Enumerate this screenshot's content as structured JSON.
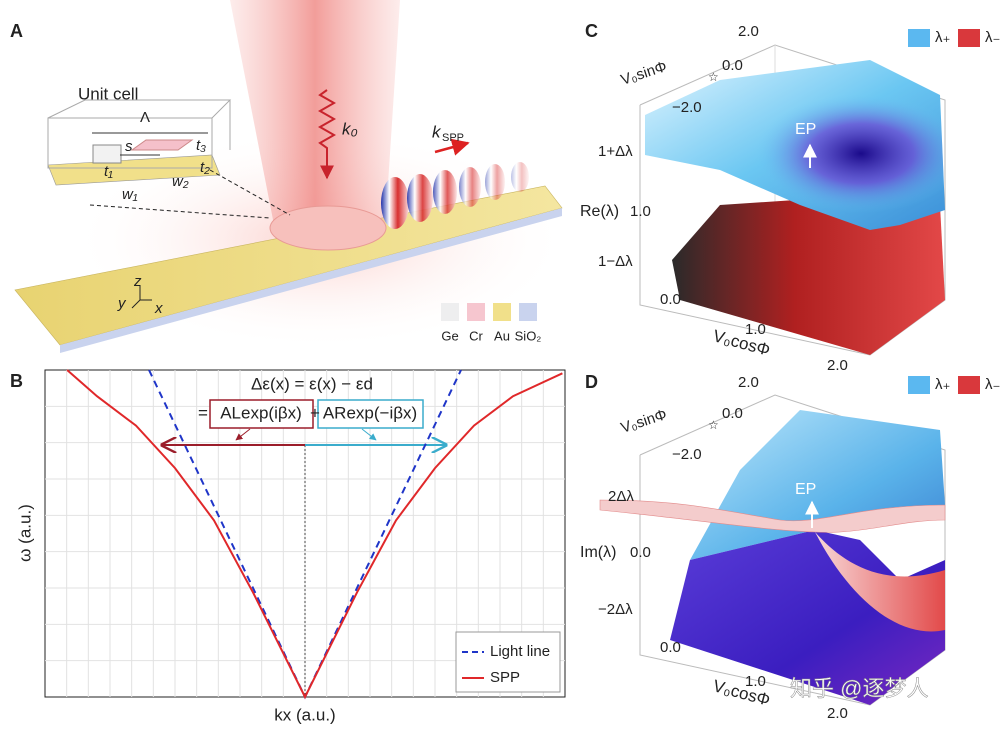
{
  "chart_data": {
    "type": "line",
    "label": "B",
    "formula_top": "Δε(x) = ε(x) − εd",
    "formula_eq": "=",
    "formula_left": "ALexp(iβx)",
    "formula_plus": "+",
    "formula_right": "ARexp(−iβx)",
    "xlabel": "kx (a.u.)",
    "ylabel": "ω (a.u.)",
    "xlim": [
      -1,
      1
    ],
    "ylim": [
      0,
      1
    ],
    "grid": true,
    "legend": "lower right",
    "series": [
      {
        "name": "Light line",
        "color": "#1f35c8",
        "dash": true,
        "x": [
          -0.6,
          0,
          0.6
        ],
        "values": [
          1,
          0,
          1
        ]
      },
      {
        "name": "SPP",
        "color": "#e0282a",
        "dash": false,
        "x": [
          -0.915,
          -0.8,
          -0.65,
          -0.5,
          -0.35,
          -0.2,
          0,
          0.2,
          0.35,
          0.5,
          0.65,
          0.8,
          0.99
        ],
        "values": [
          1,
          0.92,
          0.83,
          0.7,
          0.54,
          0.32,
          0,
          0.32,
          0.54,
          0.7,
          0.83,
          0.92,
          0.99
        ]
      }
    ]
  },
  "panel_a": {
    "label": "A",
    "unit_cell": "Unit cell",
    "period": "Λ",
    "s": "s",
    "t1": "t₁",
    "t2": "t₂",
    "t3": "t₃",
    "w1": "w₁",
    "w2": "w₂",
    "k0": "k₀",
    "kspp": "k",
    "kspp_sub": "SPP",
    "axis_z": "z",
    "axis_y": "y",
    "axis_x": "x",
    "materials": [
      {
        "name": "Ge",
        "color": "#eeeeef"
      },
      {
        "name": "Cr",
        "color": "#f6c6cf"
      },
      {
        "name": "Au",
        "color": "#f1e08a"
      },
      {
        "name": "SiO₂",
        "color": "#c9d3ee"
      }
    ]
  },
  "panel_c": {
    "label": "C",
    "sin_axis": "V₀sinΦ",
    "cos_axis": "V₀cosΦ",
    "sin_ticks": [
      "2.0",
      "0.0",
      "−2.0"
    ],
    "cos_ticks": [
      "0.0",
      "1.0",
      "2.0"
    ],
    "z_axis": "Re(λ)",
    "z_ticks": [
      "1+Δλ",
      "1.0",
      "1−Δλ"
    ],
    "ep": "EP",
    "star": "☆",
    "legend": [
      {
        "name": "λ₊",
        "color": "#5bb8f0"
      },
      {
        "name": "λ₋",
        "color": "#d9383c"
      }
    ]
  },
  "panel_d": {
    "label": "D",
    "sin_axis": "V₀sinΦ",
    "cos_axis": "V₀cosΦ",
    "sin_ticks": [
      "2.0",
      "0.0",
      "−2.0"
    ],
    "cos_ticks": [
      "0.0",
      "1.0",
      "2.0"
    ],
    "z_axis": "Im(λ)",
    "z_ticks": [
      "2Δλ",
      "0.0",
      "−2Δλ"
    ],
    "ep": "EP",
    "star": "☆",
    "legend": [
      {
        "name": "λ₊",
        "color": "#5bb8f0"
      },
      {
        "name": "λ₋",
        "color": "#d9383c"
      }
    ]
  },
  "watermark": "知乎 @逐梦人"
}
